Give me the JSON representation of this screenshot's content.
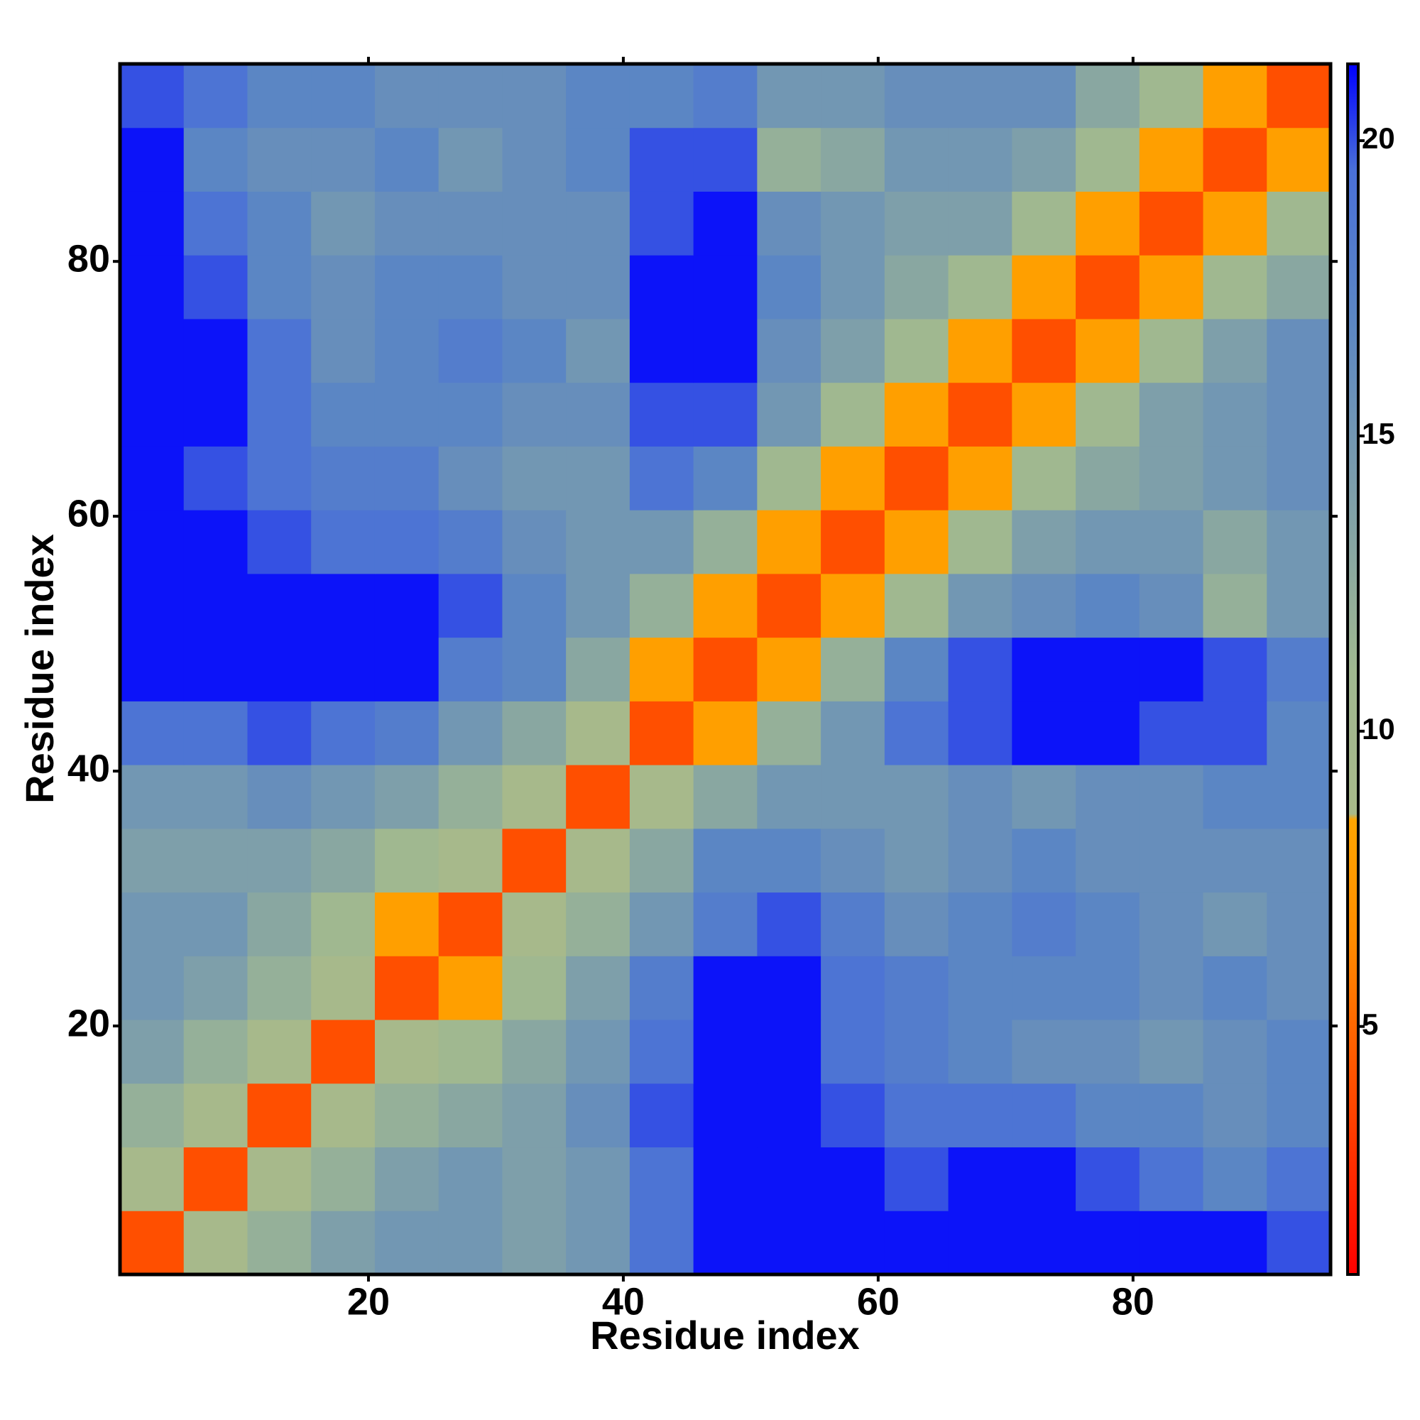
{
  "chart_data": {
    "type": "heatmap",
    "x_label": "Residue index",
    "y_label": "Residue index",
    "x_edges": [
      0.5,
      5.5,
      10.5,
      15.5,
      20.5,
      25.5,
      30.5,
      35.5,
      40.5,
      45.5,
      50.5,
      55.5,
      60.5,
      65.5,
      70.5,
      75.5,
      80.5,
      85.5,
      90.5,
      95.5
    ],
    "y_edges": [
      0.5,
      5.5,
      10.5,
      15.5,
      20.5,
      25.5,
      30.5,
      35.5,
      40.5,
      45.5,
      50.5,
      55.5,
      60.5,
      65.5,
      70.5,
      75.5,
      80.5,
      85.5,
      90.5,
      95.5
    ],
    "z": [
      [
        4,
        9,
        12,
        14,
        15,
        15,
        14,
        15,
        19,
        21,
        21,
        21,
        21,
        21,
        21,
        21,
        21,
        21,
        20
      ],
      [
        9,
        4,
        9,
        12,
        14,
        15,
        14,
        15,
        19,
        21,
        21,
        21,
        20,
        21,
        21,
        20,
        19,
        17,
        19
      ],
      [
        12,
        9,
        4,
        9,
        12,
        13,
        14,
        16,
        20,
        21,
        21,
        20,
        19,
        19,
        19,
        17,
        17,
        16,
        17
      ],
      [
        14,
        12,
        9,
        4,
        9,
        11,
        13,
        15,
        19,
        21,
        21,
        19,
        18,
        17,
        16,
        16,
        15,
        16,
        17
      ],
      [
        15,
        14,
        12,
        9,
        4,
        8,
        11,
        14,
        18,
        21,
        21,
        19,
        18,
        17,
        17,
        17,
        16,
        17,
        16
      ],
      [
        15,
        15,
        13,
        11,
        8,
        4,
        9,
        12,
        15,
        18,
        20,
        18,
        16,
        17,
        18,
        17,
        16,
        15,
        16
      ],
      [
        14,
        14,
        14,
        13,
        11,
        9,
        4,
        9,
        13,
        17,
        17,
        16,
        15,
        16,
        17,
        16,
        16,
        16,
        16
      ],
      [
        15,
        15,
        16,
        15,
        14,
        12,
        9,
        4,
        9,
        13,
        15,
        15,
        15,
        16,
        15,
        16,
        16,
        17,
        17
      ],
      [
        19,
        19,
        20,
        19,
        18,
        15,
        13,
        9,
        4,
        8,
        12,
        15,
        19,
        20,
        21,
        21,
        20,
        20,
        17
      ],
      [
        21,
        21,
        21,
        21,
        21,
        18,
        17,
        13,
        8,
        4,
        8,
        12,
        17,
        20,
        21,
        21,
        21,
        20,
        18
      ],
      [
        21,
        21,
        21,
        21,
        21,
        20,
        17,
        15,
        12,
        8,
        4,
        8,
        11,
        15,
        16,
        17,
        16,
        12,
        15
      ],
      [
        21,
        21,
        20,
        19,
        19,
        18,
        16,
        15,
        15,
        12,
        8,
        4,
        8,
        11,
        14,
        15,
        15,
        13,
        15
      ],
      [
        21,
        20,
        19,
        18,
        18,
        16,
        15,
        15,
        19,
        17,
        11,
        8,
        4,
        8,
        11,
        13,
        14,
        15,
        16
      ],
      [
        21,
        21,
        19,
        17,
        17,
        17,
        16,
        16,
        20,
        20,
        15,
        11,
        8,
        4,
        8,
        11,
        14,
        15,
        16
      ],
      [
        21,
        21,
        19,
        16,
        17,
        18,
        17,
        15,
        21,
        21,
        16,
        14,
        11,
        8,
        4,
        8,
        11,
        14,
        16
      ],
      [
        21,
        20,
        17,
        16,
        17,
        17,
        16,
        16,
        21,
        21,
        17,
        15,
        13,
        11,
        8,
        4,
        8,
        11,
        13
      ],
      [
        21,
        19,
        17,
        15,
        16,
        16,
        16,
        16,
        20,
        21,
        16,
        15,
        14,
        14,
        11,
        8,
        4,
        8,
        11
      ],
      [
        21,
        17,
        16,
        16,
        17,
        15,
        16,
        17,
        20,
        20,
        12,
        13,
        15,
        15,
        14,
        11,
        8,
        4,
        8
      ],
      [
        20,
        19,
        17,
        17,
        16,
        16,
        16,
        17,
        17,
        18,
        15,
        15,
        16,
        16,
        16,
        13,
        11,
        8,
        4
      ]
    ],
    "xlim": [
      0.5,
      95.5
    ],
    "ylim": [
      0.5,
      95.5
    ],
    "xticks": [
      20,
      40,
      60,
      80
    ],
    "yticks": [
      20,
      40,
      60,
      80
    ],
    "zlim": [
      0.8,
      21.3
    ],
    "colorbar_ticks": [
      5,
      10,
      15,
      20
    ],
    "colorscale": [
      [
        0.8,
        "#ff0000"
      ],
      [
        6.5,
        "#ff8c00"
      ],
      [
        8.5,
        "#ffa500"
      ],
      [
        8.6,
        "#a8b98a"
      ],
      [
        11,
        "#a0b890"
      ],
      [
        17,
        "#5b86c4"
      ],
      [
        19.5,
        "#4a70d8"
      ],
      [
        21.3,
        "#0000ff"
      ]
    ]
  }
}
